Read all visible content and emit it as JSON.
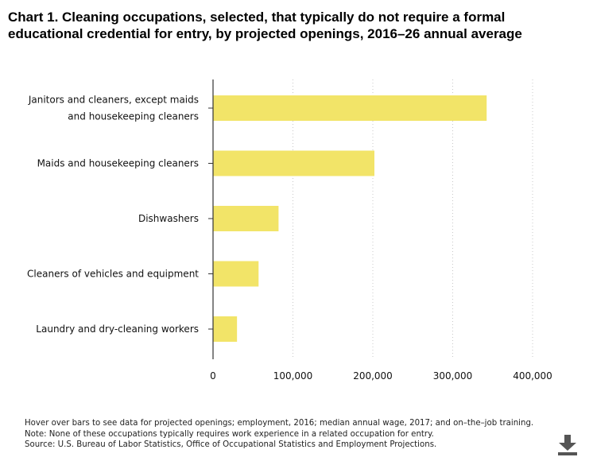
{
  "title": "Chart 1. Cleaning occupations, selected, that typically do not require a formal educational credential for entry, by projected openings, 2016–26 annual average",
  "chart_data": {
    "type": "bar",
    "orientation": "horizontal",
    "title": "Chart 1. Cleaning occupations, selected, that typically do not require a formal educational credential for entry, by projected openings, 2016–26 annual average",
    "categories": [
      [
        "Janitors and cleaners, except maids",
        "and housekeeping cleaners"
      ],
      [
        "Maids and housekeeping cleaners"
      ],
      [
        "Dishwashers"
      ],
      [
        "Cleaners of vehicles and equipment"
      ],
      [
        "Laundry and dry-cleaning workers"
      ]
    ],
    "values": [
      342500,
      202000,
      82000,
      57000,
      30000
    ],
    "xlim": [
      0,
      400000
    ],
    "xticks": [
      0,
      100000,
      200000,
      300000,
      400000
    ],
    "xtick_labels": [
      "0",
      "100,000",
      "200,000",
      "300,000",
      "400,000"
    ],
    "grid": "vertical dotted",
    "bar_color": "#f2e468"
  },
  "notes": [
    "Hover over bars to see data for projected openings; employment, 2016; median annual wage, 2017; and on–the–job training.",
    "Note: None of these occupations typically requires work experience in a related occupation for entry.",
    "Source: U.S. Bureau of Labor Statistics, Office of Occupational Statistics and Employment Projections."
  ],
  "download_icon": "download-icon"
}
